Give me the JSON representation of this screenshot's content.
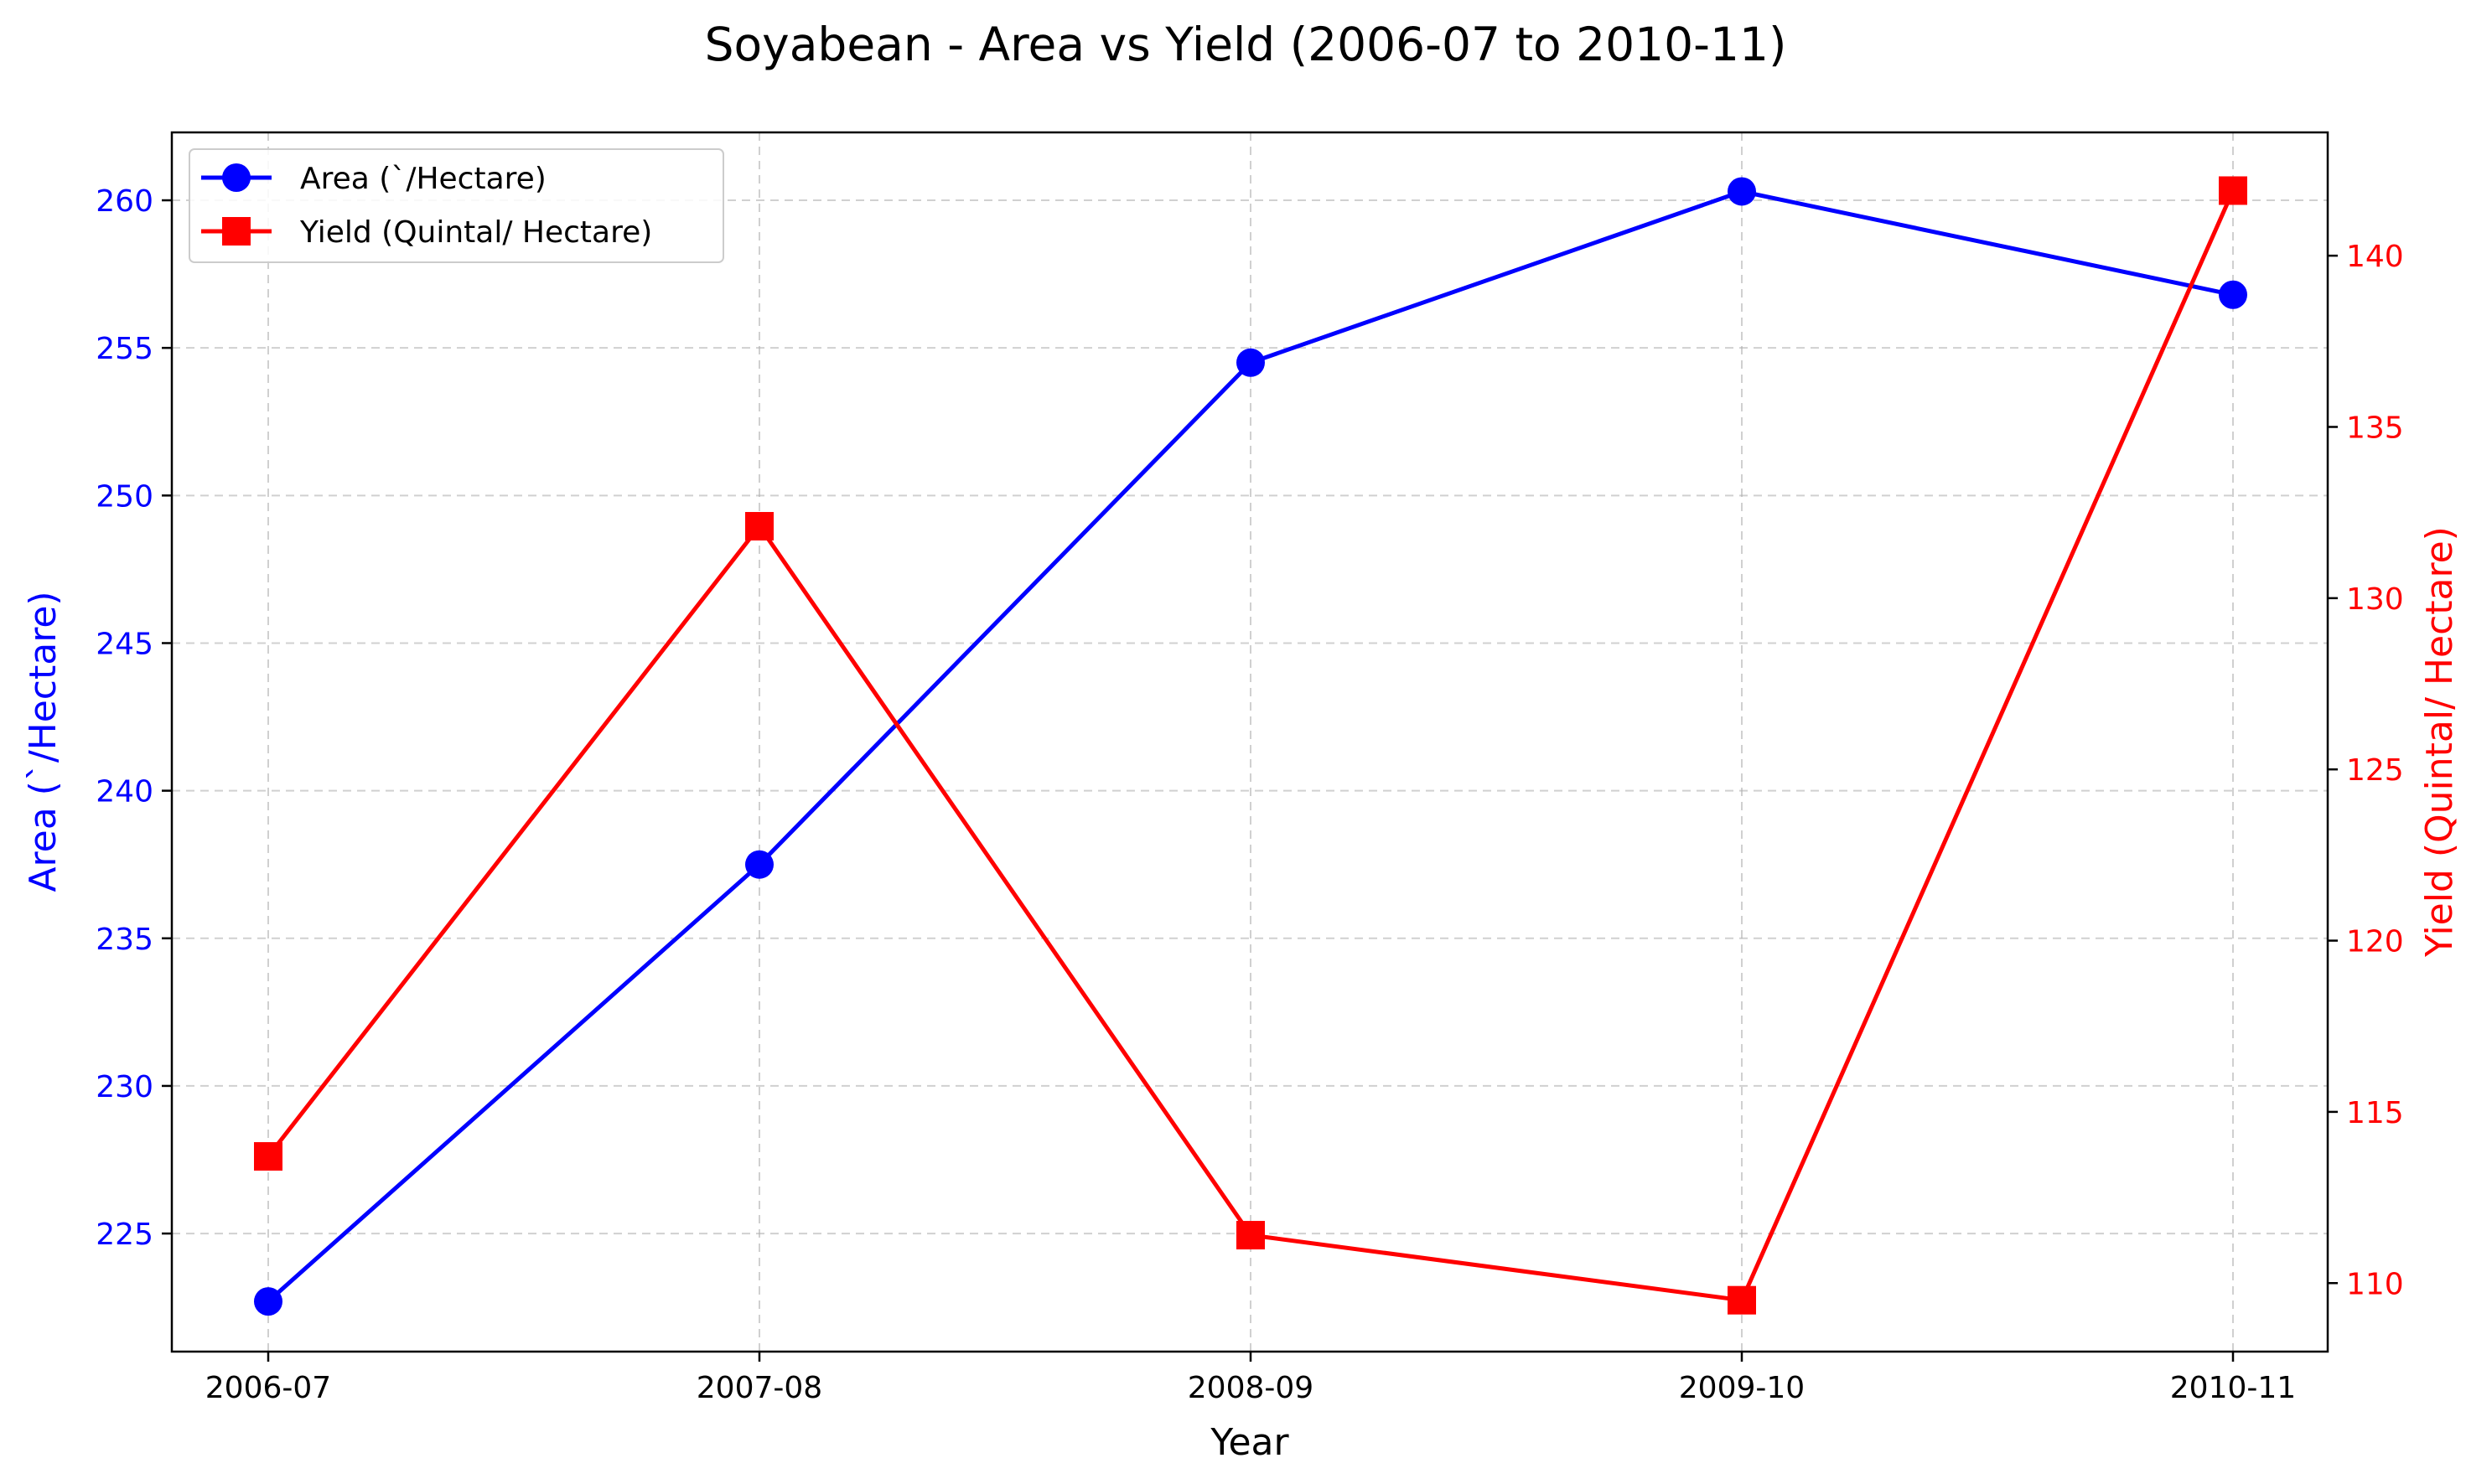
{
  "chart_data": {
    "type": "line",
    "title": "Soyabean - Area vs Yield (2006-07 to 2010-11)",
    "xlabel": "Year",
    "ylabel_left": "Area (`/Hectare)",
    "ylabel_right": "Yield (Quintal/ Hectare)",
    "categories": [
      "2006-07",
      "2007-08",
      "2008-09",
      "2009-10",
      "2010-11"
    ],
    "series": [
      {
        "name": "Area (`/Hectare)",
        "axis": "left",
        "color": "#0000ff",
        "marker": "circle",
        "values": [
          222.7,
          237.5,
          254.5,
          260.3,
          256.8
        ]
      },
      {
        "name": "Yield (Quintal/ Hectare)",
        "axis": "right",
        "color": "#ff0000",
        "marker": "square",
        "values": [
          113.7,
          132.1,
          111.4,
          109.5,
          141.9
        ]
      }
    ],
    "ylim_left": [
      221.0,
      262.3
    ],
    "ylim_right": [
      108.0,
      143.6
    ],
    "yticks_left": [
      225,
      230,
      235,
      240,
      245,
      250,
      255,
      260
    ],
    "yticks_right": [
      110,
      115,
      120,
      125,
      130,
      135,
      140
    ],
    "grid": true,
    "legend_position": "top-left"
  }
}
